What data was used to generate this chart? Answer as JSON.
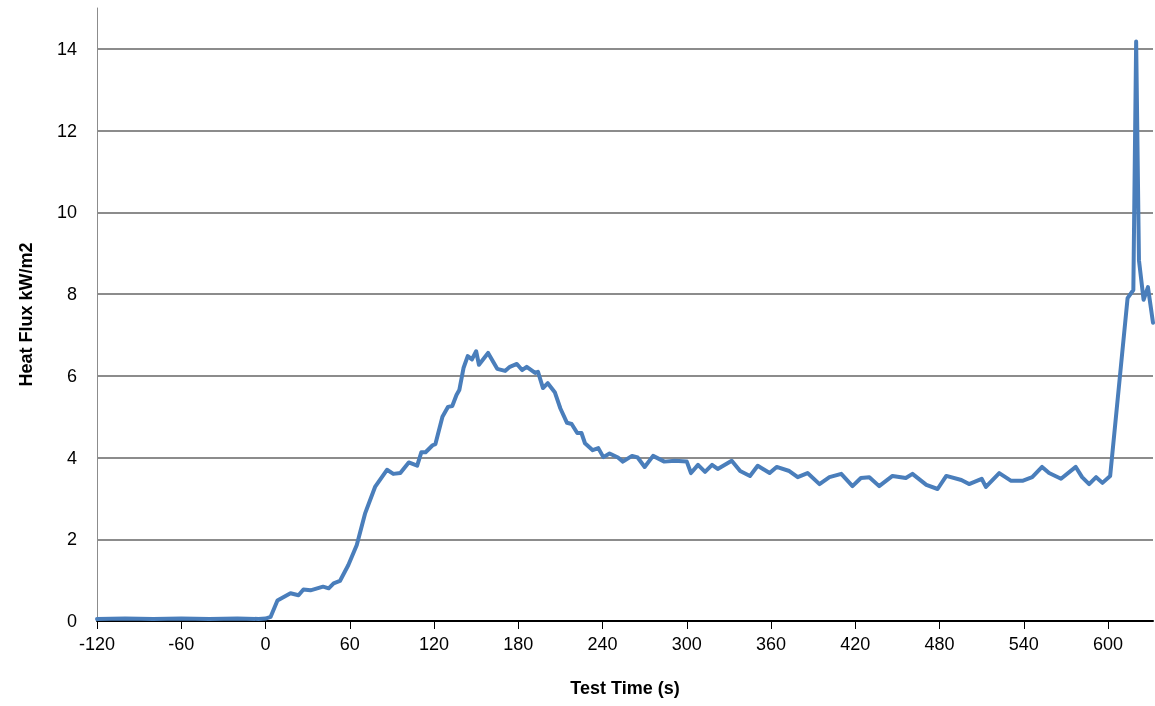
{
  "chart_data": {
    "type": "line",
    "xlabel": "Test Time (s)",
    "ylabel": "Heat Flux kW/m2",
    "xlim": [
      -120,
      632
    ],
    "xticks": [
      -120,
      -60,
      0,
      60,
      120,
      180,
      240,
      300,
      360,
      420,
      480,
      540,
      600
    ],
    "ylim": [
      0,
      15
    ],
    "yticks": [
      0,
      2,
      4,
      6,
      8,
      10,
      12,
      14
    ],
    "grid": "y",
    "marker": "none",
    "line_style": "solid",
    "series": [
      {
        "color": "#4a7ebb",
        "x": [
          -120,
          -100,
          -80,
          -60,
          -40,
          -20,
          -5,
          0,
          3.6,
          8.5,
          17.8,
          23.5,
          27,
          32,
          41,
          45,
          48.5,
          53,
          59,
          65,
          71,
          78,
          86.5,
          91,
          96,
          102,
          108,
          111,
          114,
          119,
          121,
          126,
          130,
          133,
          136,
          138,
          141,
          144,
          147,
          150,
          152,
          158.5,
          165,
          170.6,
          174,
          179,
          182.7,
          186,
          192,
          194,
          197.6,
          201,
          206,
          210,
          214.7,
          218,
          222,
          225,
          227.5,
          233,
          237,
          240.6,
          245,
          251,
          254.5,
          261,
          265,
          270,
          276,
          284,
          291.5,
          300,
          303,
          308,
          313,
          318,
          322,
          332,
          338,
          345,
          350.5,
          359,
          364,
          373,
          379,
          386,
          394.5,
          401.6,
          410,
          418,
          424,
          430,
          437,
          446.5,
          456,
          460.7,
          470.6,
          478.6,
          484.8,
          495.5,
          501,
          510,
          513,
          522.5,
          531,
          539,
          546,
          553,
          558,
          566.5,
          577,
          581.5,
          586.5,
          591.5,
          596,
          601.5,
          613.9,
          618,
          620,
          622,
          625.3,
          628.4,
          632
        ],
        "values": [
          0.05,
          0.06,
          0.05,
          0.06,
          0.05,
          0.06,
          0.05,
          0.06,
          0.1,
          0.5,
          0.68,
          0.63,
          0.77,
          0.75,
          0.84,
          0.8,
          0.92,
          0.98,
          1.37,
          1.86,
          2.64,
          3.28,
          3.7,
          3.6,
          3.62,
          3.88,
          3.8,
          4.13,
          4.13,
          4.3,
          4.33,
          5.0,
          5.24,
          5.26,
          5.53,
          5.65,
          6.19,
          6.48,
          6.4,
          6.6,
          6.27,
          6.56,
          6.17,
          6.12,
          6.22,
          6.29,
          6.14,
          6.22,
          6.07,
          6.1,
          5.7,
          5.82,
          5.6,
          5.2,
          4.85,
          4.82,
          4.6,
          4.6,
          4.35,
          4.18,
          4.23,
          4.01,
          4.1,
          4.0,
          3.9,
          4.04,
          4.0,
          3.77,
          4.04,
          3.9,
          3.92,
          3.9,
          3.62,
          3.82,
          3.65,
          3.82,
          3.72,
          3.92,
          3.67,
          3.55,
          3.8,
          3.62,
          3.77,
          3.67,
          3.52,
          3.62,
          3.35,
          3.52,
          3.6,
          3.3,
          3.5,
          3.52,
          3.3,
          3.55,
          3.5,
          3.6,
          3.33,
          3.23,
          3.55,
          3.45,
          3.35,
          3.48,
          3.28,
          3.62,
          3.43,
          3.43,
          3.52,
          3.77,
          3.62,
          3.48,
          3.77,
          3.52,
          3.35,
          3.52,
          3.38,
          3.55,
          7.9,
          8.1,
          14.18,
          8.83,
          7.86,
          8.17,
          7.3
        ]
      }
    ]
  }
}
